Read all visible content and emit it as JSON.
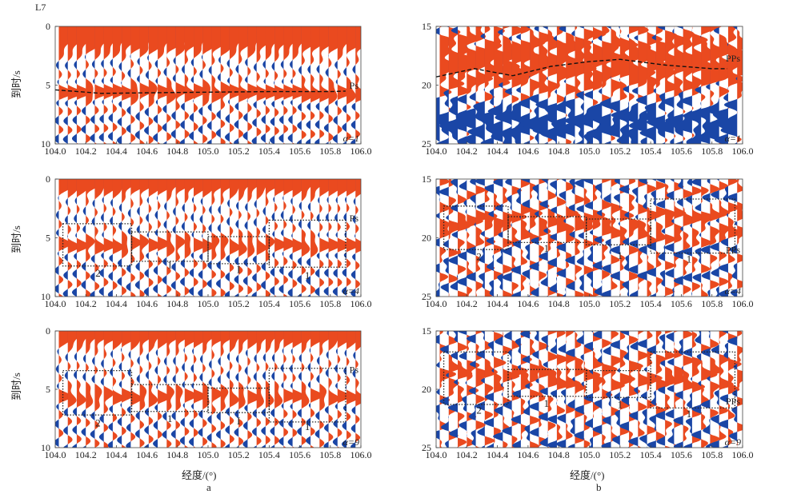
{
  "figure": {
    "corner_tag": "L7",
    "sublabels": [
      "a",
      "b"
    ],
    "xlabel": "经度/(°)",
    "ylabel": "到时/s"
  },
  "colors": {
    "positive": "#ea4a1f",
    "negative": "#1a46a6",
    "dashed": "#111111",
    "box": "#222222"
  },
  "chart_data": [
    {
      "type": "seismic-wiggle",
      "column": "a",
      "row": 1,
      "alpha_label": "α=1",
      "phase_label": "Ps",
      "xlim": [
        104.0,
        106.0
      ],
      "ylim": [
        0,
        10
      ],
      "xticks": [
        "104.0",
        "104.2",
        "104.4",
        "104.6",
        "104.8",
        "105.0",
        "105.2",
        "105.4",
        "105.6",
        "105.8",
        "106.0"
      ],
      "yticks": [
        "0",
        "5",
        "10"
      ],
      "ytick_values": [
        0,
        5,
        10
      ],
      "dashed_line": {
        "x": [
          104.0,
          104.3,
          104.6,
          105.0,
          105.4,
          105.8,
          105.9
        ],
        "y": [
          5.4,
          5.7,
          5.65,
          5.6,
          5.55,
          5.55,
          5.5
        ]
      },
      "boxes": []
    },
    {
      "type": "seismic-wiggle",
      "column": "a",
      "row": 2,
      "alpha_label": "α=4",
      "phase_label": "Ps",
      "xlim": [
        104.0,
        106.0
      ],
      "ylim": [
        0,
        10
      ],
      "xticks": [
        "104.0",
        "104.2",
        "104.4",
        "104.6",
        "104.8",
        "105.0",
        "105.2",
        "105.4",
        "105.6",
        "105.8",
        "106.0"
      ],
      "yticks": [
        "0",
        "5",
        "10"
      ],
      "ytick_values": [
        0,
        5,
        10
      ],
      "dashed_line": null,
      "boxes": [
        {
          "x": [
            104.05,
            104.5
          ],
          "y": [
            3.8,
            7.4
          ],
          "label": "2",
          "label_at": [
            104.28,
            8.3
          ]
        },
        {
          "x": [
            104.5,
            105.0
          ],
          "y": [
            4.5,
            7.0
          ],
          "label": "1",
          "label_at": [
            104.75,
            7.6
          ]
        },
        {
          "x": [
            105.0,
            105.4
          ],
          "y": [
            4.9,
            7.2
          ],
          "label": "I",
          "label_at": [
            105.2,
            8.0
          ]
        },
        {
          "x": [
            105.4,
            105.9
          ],
          "y": [
            3.5,
            7.5
          ],
          "label": "1",
          "label_at": [
            105.65,
            8.5
          ]
        }
      ]
    },
    {
      "type": "seismic-wiggle",
      "column": "a",
      "row": 3,
      "alpha_label": "α=9",
      "phase_label": "Ps",
      "xlim": [
        104.0,
        106.0
      ],
      "ylim": [
        0,
        10
      ],
      "xticks": [
        "104.0",
        "104.2",
        "104.4",
        "104.6",
        "104.8",
        "105.0",
        "105.2",
        "105.4",
        "105.6",
        "105.8",
        "106.0"
      ],
      "yticks": [
        "0",
        "5",
        "10"
      ],
      "ytick_values": [
        0,
        5,
        10
      ],
      "dashed_line": null,
      "boxes": [
        {
          "x": [
            104.05,
            104.5
          ],
          "y": [
            3.4,
            7.2
          ],
          "label": "2",
          "label_at": [
            104.28,
            8.2
          ]
        },
        {
          "x": [
            104.5,
            105.0
          ],
          "y": [
            4.6,
            6.9
          ],
          "label": "1",
          "label_at": [
            104.75,
            7.8
          ]
        },
        {
          "x": [
            105.0,
            105.4
          ],
          "y": [
            4.9,
            7.0
          ],
          "label": "I",
          "label_at": [
            105.2,
            8.0
          ]
        },
        {
          "x": [
            105.4,
            105.9
          ],
          "y": [
            3.2,
            7.8
          ],
          "label": "1",
          "label_at": [
            105.65,
            8.5
          ]
        }
      ]
    },
    {
      "type": "seismic-wiggle",
      "column": "b",
      "row": 1,
      "alpha_label": "α=1",
      "phase_label": "PPs",
      "xlim": [
        104.0,
        106.0
      ],
      "ylim": [
        15,
        25
      ],
      "xticks": [
        "104.0",
        "104.2",
        "104.4",
        "104.6",
        "104.8",
        "105.0",
        "105.2",
        "105.4",
        "105.6",
        "105.8",
        "106.0"
      ],
      "yticks": [
        "15",
        "20",
        "25"
      ],
      "ytick_values": [
        15,
        20,
        25
      ],
      "dashed_line": {
        "x": [
          104.0,
          104.25,
          104.5,
          104.75,
          105.0,
          105.2,
          105.5,
          105.8,
          105.9
        ],
        "y": [
          19.3,
          18.6,
          19.2,
          18.4,
          18.0,
          17.8,
          18.3,
          18.6,
          18.6
        ]
      },
      "boxes": []
    },
    {
      "type": "seismic-wiggle",
      "column": "b",
      "row": 2,
      "alpha_label": "α=4",
      "phase_label": "PPs",
      "xlim": [
        104.0,
        106.0
      ],
      "ylim": [
        15,
        25
      ],
      "xticks": [
        "104.0",
        "104.2",
        "104.4",
        "104.6",
        "104.8",
        "105.0",
        "105.2",
        "105.4",
        "105.6",
        "105.8",
        "106.0"
      ],
      "yticks": [
        "15",
        "20",
        "25"
      ],
      "ytick_values": [
        15,
        20,
        25
      ],
      "dashed_line": null,
      "boxes": [
        {
          "x": [
            104.05,
            104.47
          ],
          "y": [
            17.3,
            21.0
          ],
          "label": "2",
          "label_at": [
            104.28,
            21.9
          ]
        },
        {
          "x": [
            104.47,
            104.98
          ],
          "y": [
            18.2,
            20.4
          ],
          "label": "1",
          "label_at": [
            104.72,
            21.2
          ]
        },
        {
          "x": [
            104.98,
            105.4
          ],
          "y": [
            18.4,
            20.6
          ],
          "label": "1",
          "label_at": [
            105.2,
            21.8
          ]
        },
        {
          "x": [
            105.4,
            105.95
          ],
          "y": [
            16.7,
            21.3
          ],
          "label": "1",
          "label_at": [
            105.65,
            22.1
          ]
        }
      ]
    },
    {
      "type": "seismic-wiggle",
      "column": "b",
      "row": 3,
      "alpha_label": "α=9",
      "phase_label": "PPs",
      "xlim": [
        104.0,
        106.0
      ],
      "ylim": [
        15,
        25
      ],
      "xticks": [
        "104.0",
        "104.2",
        "104.4",
        "104.6",
        "104.8",
        "105.0",
        "105.2",
        "105.4",
        "105.6",
        "105.8",
        "106.0"
      ],
      "yticks": [
        "15",
        "20",
        "25"
      ],
      "ytick_values": [
        15,
        20,
        25
      ],
      "dashed_line": null,
      "boxes": [
        {
          "x": [
            104.05,
            104.47
          ],
          "y": [
            16.8,
            21.3
          ],
          "label": "2",
          "label_at": [
            104.28,
            22.1
          ]
        },
        {
          "x": [
            104.47,
            104.98
          ],
          "y": [
            18.3,
            20.6
          ],
          "label": "1",
          "label_at": [
            104.72,
            21.5
          ]
        },
        {
          "x": [
            104.98,
            105.4
          ],
          "y": [
            18.4,
            20.7
          ],
          "label": "1",
          "label_at": [
            105.2,
            21.6
          ]
        },
        {
          "x": [
            105.4,
            105.95
          ],
          "y": [
            16.8,
            21.6
          ],
          "label": "1",
          "label_at": [
            105.65,
            22.4
          ]
        }
      ]
    }
  ]
}
